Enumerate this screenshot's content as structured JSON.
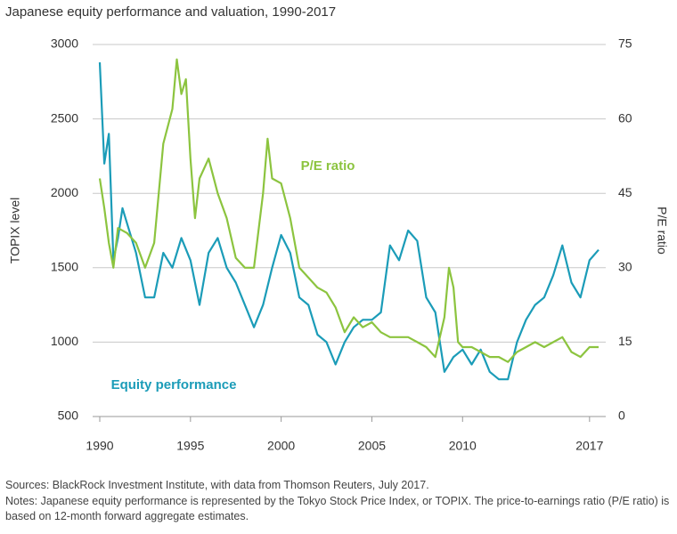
{
  "chart_data": {
    "type": "line",
    "title": "Japanese equity performance and valuation, 1990-2017",
    "y_label": "TOPIX level",
    "y2_label": "P/E ratio",
    "source": "Sources: BlackRock Investment Institute, with data from Thomson Reuters, July 2017.",
    "notes": "Notes: Japanese equity performance is represented by the Tokyo Stock Price Index, or TOPIX. The price-to-earnings ratio (P/E ratio) is based on 12-month forward aggregate estimates.",
    "xlim": [
      1990,
      2017.5
    ],
    "xticks": [
      1990,
      1995,
      2000,
      2005,
      2010,
      2017
    ],
    "ylim": [
      500,
      3000
    ],
    "yticks": [
      500,
      1000,
      1500,
      2000,
      2500,
      3000
    ],
    "y2lim": [
      0,
      75
    ],
    "y2ticks": [
      0,
      15,
      30,
      45,
      60,
      75
    ],
    "grid": true,
    "series": [
      {
        "name": "Equity performance",
        "color": "#1b9cb8",
        "x": [
          1990,
          1990.25,
          1990.5,
          1990.75,
          1991,
          1991.25,
          1991.5,
          1992,
          1992.5,
          1993,
          1993.5,
          1994,
          1994.5,
          1995,
          1995.5,
          1996,
          1996.5,
          1997,
          1997.5,
          1998,
          1998.5,
          1999,
          1999.5,
          2000,
          2000.5,
          2001,
          2001.5,
          2002,
          2002.5,
          2003,
          2003.5,
          2004,
          2004.5,
          2005,
          2005.5,
          2006,
          2006.5,
          2007,
          2007.5,
          2008,
          2008.5,
          2009,
          2009.5,
          2010,
          2010.5,
          2011,
          2011.5,
          2012,
          2012.5,
          2013,
          2013.5,
          2014,
          2014.5,
          2015,
          2015.5,
          2016,
          2016.5,
          2017,
          2017.5
        ],
        "values": [
          2880,
          2200,
          2400,
          1550,
          1700,
          1900,
          1800,
          1600,
          1300,
          1300,
          1600,
          1500,
          1700,
          1550,
          1250,
          1600,
          1700,
          1500,
          1400,
          1250,
          1100,
          1250,
          1500,
          1720,
          1600,
          1300,
          1250,
          1050,
          1000,
          850,
          1000,
          1100,
          1150,
          1150,
          1200,
          1650,
          1550,
          1750,
          1680,
          1300,
          1200,
          800,
          900,
          950,
          850,
          950,
          800,
          750,
          750,
          1000,
          1150,
          1250,
          1300,
          1450,
          1650,
          1400,
          1300,
          1550,
          1620
        ]
      },
      {
        "name": "P/E ratio",
        "color": "#8cc43f",
        "axis": "y2",
        "x": [
          1990,
          1990.25,
          1990.5,
          1990.75,
          1991,
          1991.5,
          1992,
          1992.5,
          1993,
          1993.5,
          1994,
          1994.25,
          1994.5,
          1994.75,
          1995,
          1995.25,
          1995.5,
          1996,
          1996.5,
          1997,
          1997.5,
          1998,
          1998.5,
          1999,
          1999.25,
          1999.5,
          2000,
          2000.5,
          2001,
          2001.5,
          2002,
          2002.5,
          2003,
          2003.5,
          2004,
          2004.5,
          2005,
          2005.5,
          2006,
          2006.5,
          2007,
          2007.5,
          2008,
          2008.5,
          2009,
          2009.25,
          2009.5,
          2009.75,
          2010,
          2010.5,
          2011,
          2011.5,
          2012,
          2012.5,
          2013,
          2013.5,
          2014,
          2014.5,
          2015,
          2015.5,
          2016,
          2016.5,
          2017,
          2017.5
        ],
        "values": [
          48,
          42,
          35,
          30,
          38,
          37,
          35,
          30,
          35,
          55,
          62,
          72,
          65,
          68,
          52,
          40,
          48,
          52,
          45,
          40,
          32,
          30,
          30,
          45,
          56,
          48,
          47,
          40,
          30,
          28,
          26,
          25,
          22,
          17,
          20,
          18,
          19,
          17,
          16,
          16,
          16,
          15,
          14,
          12,
          20,
          30,
          26,
          15,
          14,
          14,
          13,
          12,
          12,
          11,
          13,
          14,
          15,
          14,
          15,
          16,
          13,
          12,
          14,
          14
        ]
      }
    ]
  }
}
